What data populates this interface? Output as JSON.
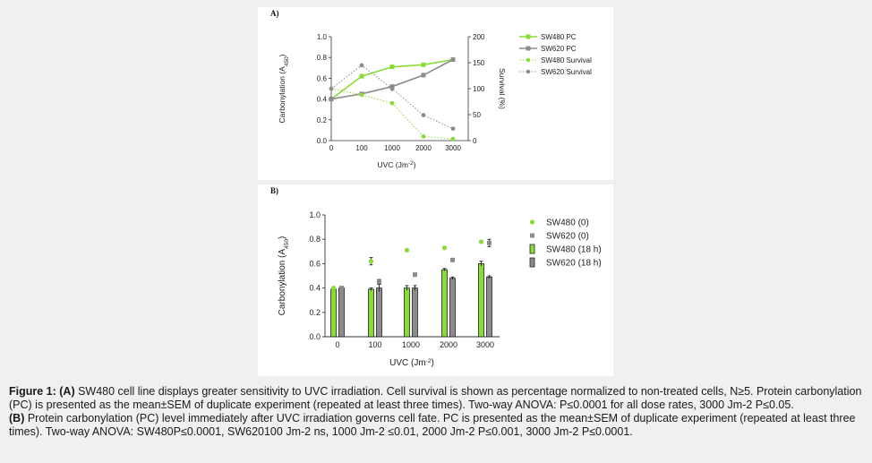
{
  "chart_data": [
    {
      "type": "line",
      "panel_label": "A)",
      "categories": [
        "0",
        "100",
        "1000",
        "2000",
        "3000"
      ],
      "xlabel": "UVC (Jm",
      "xlabel_sup": "-2",
      "xlabel_end": ")",
      "ylabel": "Carbonylation (A",
      "ylabel_sub": "450",
      "ylabel_end": ")",
      "ylabel_right": "Survival (%)",
      "ylim": [
        0,
        1.0
      ],
      "yticks": [
        "0.0",
        "0.2",
        "0.4",
        "0.6",
        "0.8",
        "1.0"
      ],
      "ylim_right": [
        0,
        200
      ],
      "yticks_right": [
        "0",
        "50",
        "100",
        "150",
        "200"
      ],
      "series": [
        {
          "name": "SW480 PC",
          "axis": "left",
          "style": "solid",
          "marker": "square",
          "color": "#8cd93c",
          "values": [
            0.4,
            0.62,
            0.71,
            0.73,
            0.78
          ],
          "errors": [
            0.01,
            0.02,
            0.01,
            0.01,
            0.02
          ]
        },
        {
          "name": "SW620 PC",
          "axis": "left",
          "style": "solid",
          "marker": "square",
          "color": "#8c8c8c",
          "values": [
            0.4,
            0.45,
            0.52,
            0.63,
            0.78
          ],
          "errors": [
            0.01,
            0.02,
            0.02,
            0.01,
            0.02
          ]
        },
        {
          "name": "SW480 Survival",
          "axis": "right",
          "style": "dotted",
          "marker": "circle",
          "color": "#8cd93c",
          "values": [
            100,
            88,
            72,
            8,
            3
          ],
          "errors": [
            0,
            3,
            3,
            2,
            1
          ]
        },
        {
          "name": "SW620 Survival",
          "axis": "right",
          "style": "dotted",
          "marker": "circle",
          "color": "#8c8c8c",
          "values": [
            100,
            145,
            100,
            49,
            23
          ],
          "errors": [
            0,
            3,
            5,
            4,
            3
          ]
        }
      ]
    },
    {
      "type": "bar",
      "panel_label": "B)",
      "categories": [
        "0",
        "100",
        "1000",
        "2000",
        "3000"
      ],
      "xlabel": "UVC (Jm",
      "xlabel_sup": "-2",
      "xlabel_end": ")",
      "ylabel": "Carbonylation (A",
      "ylabel_sub": "450",
      "ylabel_end": ")",
      "ylim": [
        0,
        1.0
      ],
      "yticks": [
        "0.0",
        "0.2",
        "0.4",
        "0.6",
        "0.8",
        "1.0"
      ],
      "series": [
        {
          "name": "SW480 (0)",
          "kind": "point",
          "marker": "circle",
          "color": "#8cd93c",
          "values": [
            0.4,
            0.62,
            0.71,
            0.73,
            0.78
          ],
          "errors": [
            0.01,
            0.03,
            0.01,
            0.01,
            0.01
          ]
        },
        {
          "name": "SW620 (0)",
          "kind": "point",
          "marker": "square",
          "color": "#8c8c8c",
          "values": [
            0.4,
            0.45,
            0.51,
            0.63,
            0.77
          ],
          "errors": [
            0.01,
            0.02,
            0.01,
            0.01,
            0.03
          ]
        },
        {
          "name": "SW480 (18 h)",
          "kind": "bar",
          "color": "#8cd93c",
          "values": [
            0.39,
            0.39,
            0.4,
            0.55,
            0.6
          ],
          "errors": [
            0.01,
            0.01,
            0.02,
            0.01,
            0.02
          ]
        },
        {
          "name": "SW620 (18 h)",
          "kind": "bar",
          "color": "#8c8c8c",
          "values": [
            0.4,
            0.4,
            0.4,
            0.48,
            0.49
          ],
          "errors": [
            0.01,
            0.03,
            0.02,
            0.01,
            0.01
          ]
        }
      ]
    }
  ],
  "caption": {
    "a_prefix": "Figure 1: (A)",
    "a_text": " SW480 cell line displays greater sensitivity to UVC irradiation. Cell survival is shown as percentage normalized to non-treated cells, N≥5. Protein carbonylation (PC) is presented as the mean±SEM of duplicate experiment (repeated at least three times).  Two-way ANOVA: P≤0.0001 for all dose rates, 3000 Jm-2 P≤0.05.",
    "b_prefix": "(B)",
    "b_text": " Protein carbonylation (PC) level immediately after UVC irradiation governs cell fate. PC is presented as the mean±SEM of duplicate experiment (repeated at least three times). Two-way ANOVA: SW480P≤0.0001, SW620100 Jm-2  ns, 1000 Jm-2 ≤0.01, 2000 Jm-2 P≤0.001, 3000 Jm-2 P≤0.0001."
  }
}
